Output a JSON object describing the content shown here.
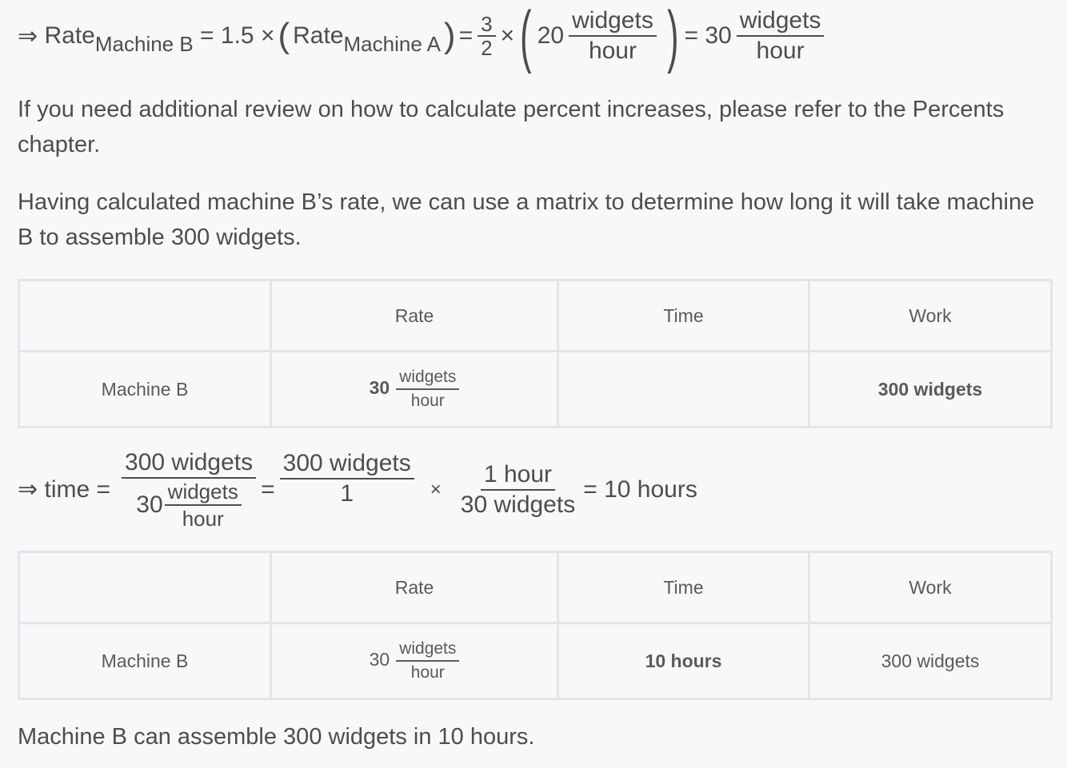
{
  "equation1": {
    "arrow": "⇒",
    "rate": "Rate",
    "sub_b": "Machine B",
    "eq1": "= 1.5 ×",
    "sub_a": "Machine A",
    "eq2": "=",
    "frac_num": "3",
    "frac_den": "2",
    "times": "×",
    "twenty": "20",
    "unit_num": "widgets",
    "unit_den": "hour",
    "eq3": "= 30"
  },
  "paragraph1": "If you need additional review on how to calculate percent increases, please refer to the Percents chapter.",
  "paragraph2": "Having calculated machine B’s rate, we can use a matrix to determine how long it will take machine B to assemble 300 widgets.",
  "table1": {
    "headers": [
      "",
      "Rate",
      "Time",
      "Work"
    ],
    "row": {
      "label": "Machine B",
      "rate_value": "30",
      "rate_unit_num": "widgets",
      "rate_unit_den": "hour",
      "time": "",
      "work": "300 widgets"
    }
  },
  "equation2": {
    "arrow": "⇒",
    "lhs": "time =",
    "f1_num": "300 widgets",
    "f1_den_value": "30",
    "f1_den_num": "widgets",
    "f1_den_den": "hour",
    "eq": "=",
    "f2_num": "300 widgets",
    "f2_den": "1",
    "times": "×",
    "f3_num": "1 hour",
    "f3_den": "30 widgets",
    "result": "= 10 hours"
  },
  "table2": {
    "headers": [
      "",
      "Rate",
      "Time",
      "Work"
    ],
    "row": {
      "label": "Machine B",
      "rate_value": "30",
      "rate_unit_num": "widgets",
      "rate_unit_den": "hour",
      "time": "10 hours",
      "work": "300 widgets"
    }
  },
  "conclusion": "Machine B can assemble 300 widgets in 10 hours."
}
